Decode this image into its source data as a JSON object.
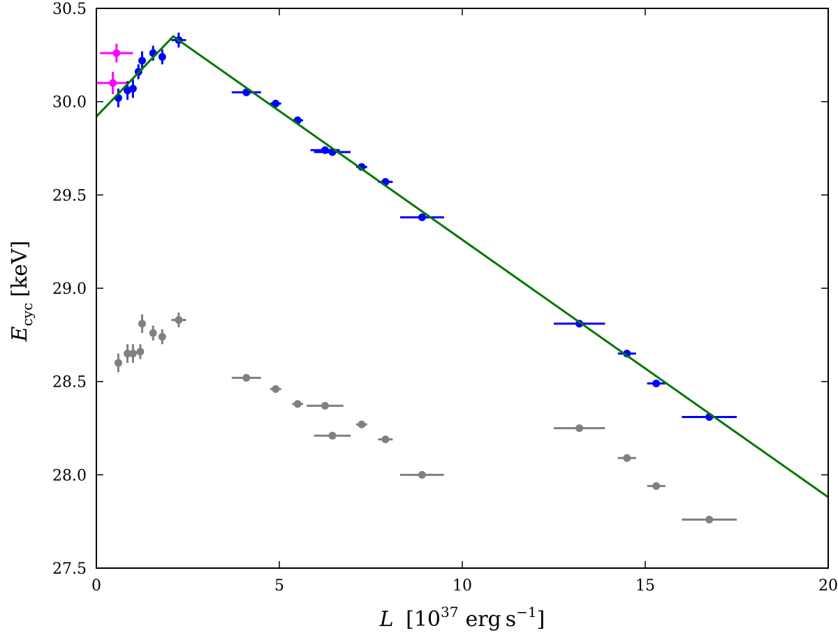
{
  "chart_data": {
    "type": "scatter",
    "title": "",
    "xlabel": "L [10^37 erg s^-1]",
    "xlabel_parts": {
      "symbol": "L",
      "open": "[",
      "base": "10",
      "exp": "37",
      "unit1": "erg",
      "unit2": "s",
      "unit2_exp": "−1",
      "close": "]"
    },
    "ylabel": "E_cyc [keV]",
    "ylabel_parts": {
      "symbol": "E",
      "subscript": "cyc",
      "unit": "[keV]"
    },
    "xlim": [
      0,
      20
    ],
    "ylim": [
      27.5,
      30.5
    ],
    "xticks": [
      0,
      5,
      10,
      15,
      20
    ],
    "xtick_labels": [
      "0",
      "5",
      "10",
      "15",
      "20"
    ],
    "yticks": [
      27.5,
      28.0,
      28.5,
      29.0,
      29.5,
      30.0,
      30.5
    ],
    "ytick_labels": [
      "27.5",
      "28.0",
      "28.5",
      "29.0",
      "29.5",
      "30.0",
      "30.5"
    ],
    "grid": false,
    "series": [
      {
        "name": "magenta",
        "color": "#ff00ff",
        "points": [
          {
            "x": 0.55,
            "xerr": 0.45,
            "y": 30.26,
            "yerr": 0.05
          },
          {
            "x": 0.45,
            "xerr": 0.45,
            "y": 30.1,
            "yerr": 0.06
          }
        ]
      },
      {
        "name": "blue",
        "color": "#0000ff",
        "points": [
          {
            "x": 0.6,
            "xerr": 0.05,
            "y": 30.02,
            "yerr": 0.05
          },
          {
            "x": 0.85,
            "xerr": 0.05,
            "y": 30.06,
            "yerr": 0.05
          },
          {
            "x": 1.0,
            "xerr": 0.05,
            "y": 30.07,
            "yerr": 0.05
          },
          {
            "x": 1.15,
            "xerr": 0.05,
            "y": 30.16,
            "yerr": 0.04
          },
          {
            "x": 1.25,
            "xerr": 0.05,
            "y": 30.22,
            "yerr": 0.05
          },
          {
            "x": 1.55,
            "xerr": 0.1,
            "y": 30.26,
            "yerr": 0.04
          },
          {
            "x": 1.8,
            "xerr": 0.08,
            "y": 30.24,
            "yerr": 0.04
          },
          {
            "x": 2.25,
            "xerr": 0.2,
            "y": 30.33,
            "yerr": 0.04
          },
          {
            "x": 4.1,
            "xerr": 0.4,
            "y": 30.05,
            "yerr": 0.015
          },
          {
            "x": 4.9,
            "xerr": 0.15,
            "y": 29.99,
            "yerr": 0.015
          },
          {
            "x": 5.5,
            "xerr": 0.15,
            "y": 29.9,
            "yerr": 0.015
          },
          {
            "x": 6.25,
            "xerr": 0.4,
            "y": 29.74,
            "yerr": 0.01
          },
          {
            "x": 6.45,
            "xerr": 0.5,
            "y": 29.73,
            "yerr": 0.015
          },
          {
            "x": 7.25,
            "xerr": 0.15,
            "y": 29.65,
            "yerr": 0.01
          },
          {
            "x": 7.9,
            "xerr": 0.2,
            "y": 29.57,
            "yerr": 0.01
          },
          {
            "x": 8.9,
            "xerr": 0.6,
            "y": 29.38,
            "yerr": 0.01
          },
          {
            "x": 13.2,
            "xerr": 0.7,
            "y": 28.81,
            "yerr": 0.01
          },
          {
            "x": 14.5,
            "xerr": 0.25,
            "y": 28.65,
            "yerr": 0.01
          },
          {
            "x": 15.3,
            "xerr": 0.25,
            "y": 28.49,
            "yerr": 0.01
          },
          {
            "x": 16.75,
            "xerr": 0.75,
            "y": 28.31,
            "yerr": 0.01
          }
        ]
      },
      {
        "name": "gray",
        "color": "#808080",
        "points": [
          {
            "x": 0.6,
            "xerr": 0.05,
            "y": 28.6,
            "yerr": 0.05
          },
          {
            "x": 0.85,
            "xerr": 0.05,
            "y": 28.65,
            "yerr": 0.05
          },
          {
            "x": 1.0,
            "xerr": 0.05,
            "y": 28.65,
            "yerr": 0.05
          },
          {
            "x": 1.2,
            "xerr": 0.05,
            "y": 28.66,
            "yerr": 0.04
          },
          {
            "x": 1.25,
            "xerr": 0.05,
            "y": 28.81,
            "yerr": 0.05
          },
          {
            "x": 1.55,
            "xerr": 0.1,
            "y": 28.76,
            "yerr": 0.04
          },
          {
            "x": 1.8,
            "xerr": 0.08,
            "y": 28.74,
            "yerr": 0.04
          },
          {
            "x": 2.25,
            "xerr": 0.2,
            "y": 28.83,
            "yerr": 0.04
          },
          {
            "x": 4.1,
            "xerr": 0.4,
            "y": 28.52,
            "yerr": 0.015
          },
          {
            "x": 4.9,
            "xerr": 0.15,
            "y": 28.46,
            "yerr": 0.02
          },
          {
            "x": 5.5,
            "xerr": 0.15,
            "y": 28.38,
            "yerr": 0.02
          },
          {
            "x": 6.25,
            "xerr": 0.5,
            "y": 28.37,
            "yerr": 0.01
          },
          {
            "x": 6.45,
            "xerr": 0.5,
            "y": 28.21,
            "yerr": 0.02
          },
          {
            "x": 7.25,
            "xerr": 0.15,
            "y": 28.27,
            "yerr": 0.01
          },
          {
            "x": 7.9,
            "xerr": 0.2,
            "y": 28.19,
            "yerr": 0.01
          },
          {
            "x": 8.9,
            "xerr": 0.6,
            "y": 28.0,
            "yerr": 0.01
          },
          {
            "x": 13.2,
            "xerr": 0.7,
            "y": 28.25,
            "yerr": 0.01
          },
          {
            "x": 14.5,
            "xerr": 0.25,
            "y": 28.09,
            "yerr": 0.01
          },
          {
            "x": 15.3,
            "xerr": 0.25,
            "y": 27.94,
            "yerr": 0.01
          },
          {
            "x": 16.75,
            "xerr": 0.75,
            "y": 27.76,
            "yerr": 0.01
          }
        ]
      }
    ],
    "fit_line": {
      "name": "broken-linear-fit",
      "color": "#007700",
      "x": [
        0,
        2.1,
        20
      ],
      "y": [
        29.92,
        30.35,
        27.88
      ]
    }
  }
}
